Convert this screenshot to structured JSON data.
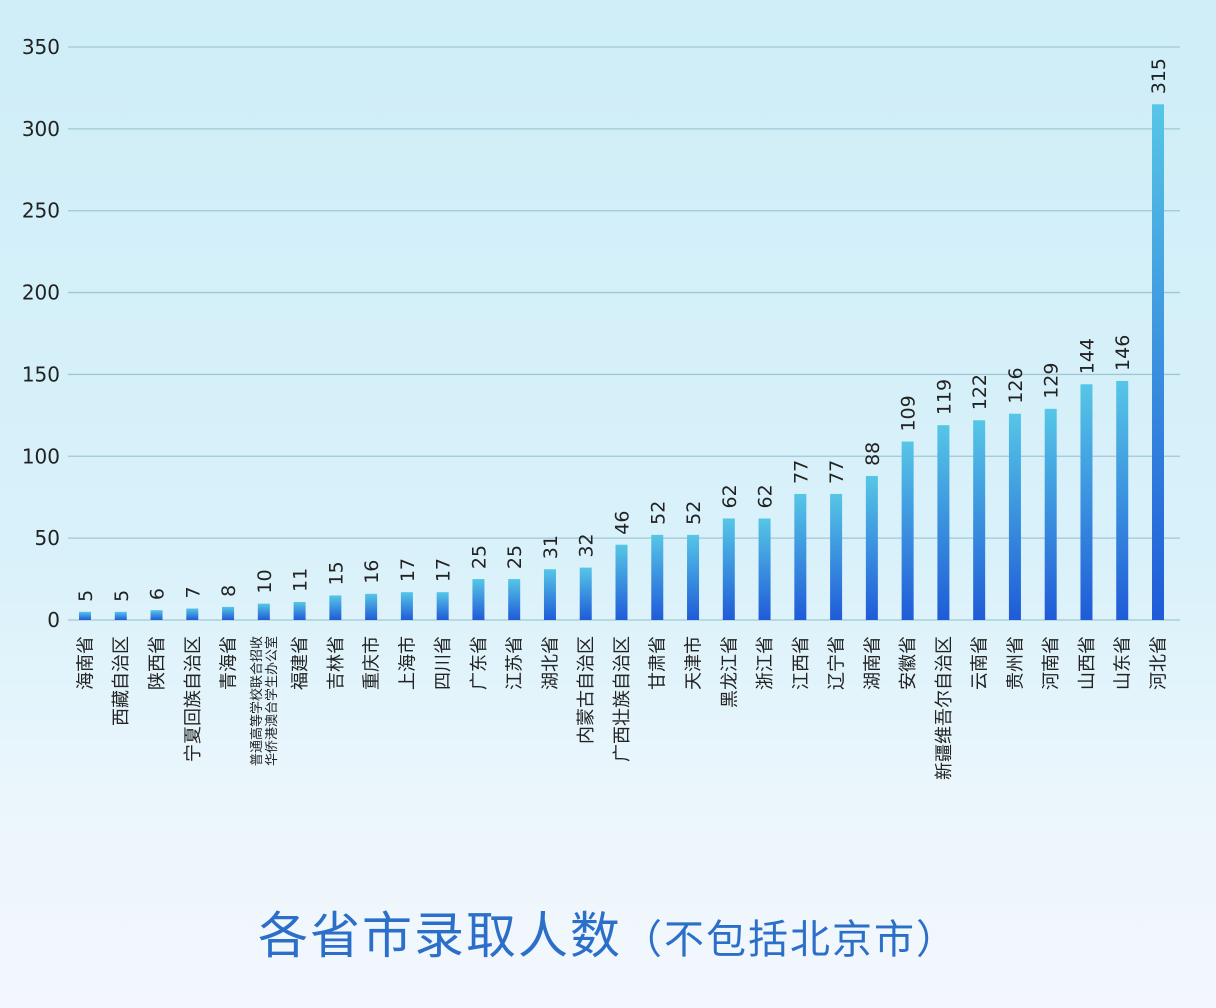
{
  "chart_data": {
    "type": "bar",
    "title": "各省市录取人数",
    "subtitle": "（不包括北京市）",
    "xlabel": "",
    "ylabel": "",
    "ylim": [
      0,
      350
    ],
    "yticks": [
      0,
      50,
      100,
      150,
      200,
      250,
      300,
      350
    ],
    "grid": true,
    "categories": [
      [
        "海南省"
      ],
      [
        "西藏自治区"
      ],
      [
        "陕西省"
      ],
      [
        "宁夏回族自治区"
      ],
      [
        "青海省"
      ],
      [
        "普通高等学校联合招收",
        "华侨港澳台学生办公室"
      ],
      [
        "福建省"
      ],
      [
        "吉林省"
      ],
      [
        "重庆市"
      ],
      [
        "上海市"
      ],
      [
        "四川省"
      ],
      [
        "广东省"
      ],
      [
        "江苏省"
      ],
      [
        "湖北省"
      ],
      [
        "内蒙古自治区"
      ],
      [
        "广西壮族自治区"
      ],
      [
        "甘肃省"
      ],
      [
        "天津市"
      ],
      [
        "黑龙江省"
      ],
      [
        "浙江省"
      ],
      [
        "江西省"
      ],
      [
        "辽宁省"
      ],
      [
        "湖南省"
      ],
      [
        "安徽省"
      ],
      [
        "新疆维吾尔自治区"
      ],
      [
        "云南省"
      ],
      [
        "贵州省"
      ],
      [
        "河南省"
      ],
      [
        "山西省"
      ],
      [
        "山东省"
      ],
      [
        "河北省"
      ]
    ],
    "values": [
      5,
      5,
      6,
      7,
      8,
      10,
      11,
      15,
      16,
      17,
      17,
      25,
      25,
      31,
      32,
      46,
      52,
      52,
      62,
      62,
      77,
      77,
      88,
      109,
      119,
      122,
      126,
      129,
      144,
      146,
      315
    ],
    "colors": {
      "bar_top": "#56c6e6",
      "bar_bottom": "#1f5bd8",
      "grid": "#9fc8d4",
      "text": "#222222",
      "title": "#2c6fc8"
    }
  }
}
